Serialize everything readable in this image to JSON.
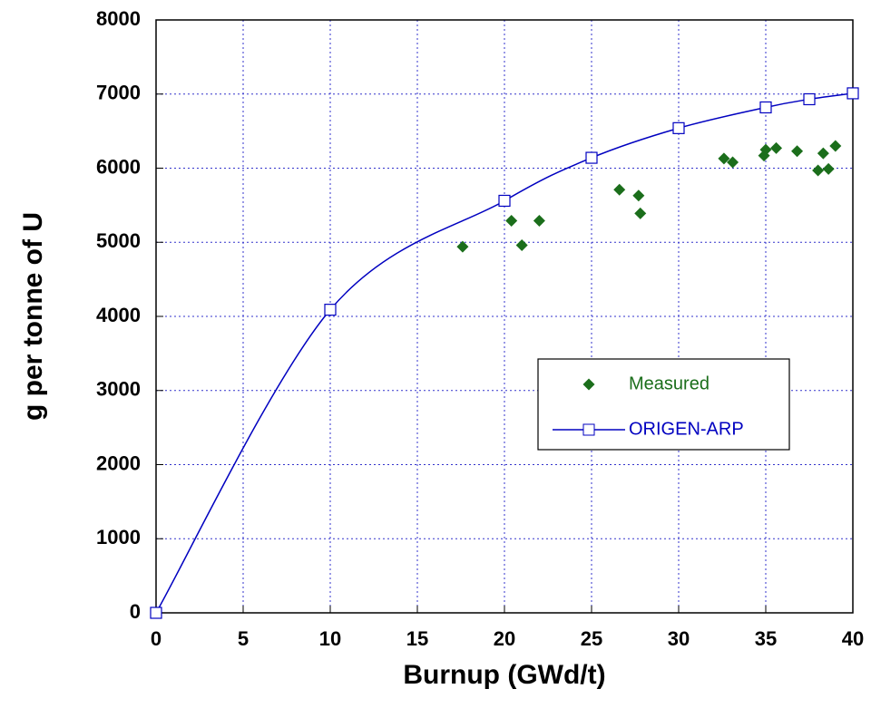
{
  "chart_data": {
    "type": "scatter-line",
    "xlabel": "Burnup (GWd/t)",
    "ylabel": "g per tonne of U",
    "xlim": [
      0,
      40
    ],
    "xticks": [
      0,
      5,
      10,
      15,
      20,
      25,
      30,
      35,
      40
    ],
    "ylim": [
      0,
      8000
    ],
    "yticks": [
      0,
      1000,
      2000,
      3000,
      4000,
      5000,
      6000,
      7000,
      8000
    ],
    "grid": true,
    "legend": "right",
    "series": [
      {
        "name": "Measured",
        "color": "#1b6e1b",
        "kind": "scatter",
        "x": [
          0,
          17.6,
          20.4,
          21.0,
          22.0,
          26.6,
          27.7,
          27.8,
          32.6,
          33.1,
          34.9,
          35.0,
          35.6,
          36.8,
          38.0,
          38.3,
          38.6,
          39.0
        ],
        "values": [
          0,
          4940,
          5290,
          4960,
          5290,
          5710,
          5630,
          5390,
          6130,
          6080,
          6170,
          6250,
          6270,
          6230,
          5970,
          6200,
          5990,
          6300
        ]
      },
      {
        "name": "ORIGEN-ARP",
        "color": "#0000c0",
        "kind": "line",
        "x": [
          0,
          10,
          20,
          25,
          30,
          35,
          37.5,
          40
        ],
        "values": [
          0,
          4090,
          5560,
          6140,
          6540,
          6820,
          6930,
          7010
        ]
      }
    ]
  }
}
